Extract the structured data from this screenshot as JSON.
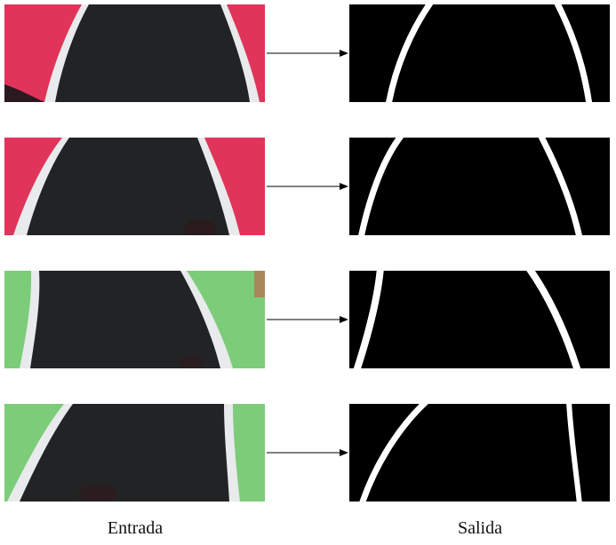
{
  "labels": {
    "input": "Entrada",
    "output": "Salida"
  },
  "colors": {
    "red_background": "#e0345a",
    "green_background": "#7dcc7a",
    "dark_object": "#222324",
    "white_border": "#e8eaec",
    "mask_background": "#000000",
    "mask_line": "#ffffff",
    "arrow": "#000000"
  },
  "rows": [
    {
      "background": "red",
      "icon": "input-photo-red"
    },
    {
      "background": "red",
      "icon": "input-photo-red"
    },
    {
      "background": "green",
      "icon": "input-photo-green"
    },
    {
      "background": "green",
      "icon": "input-photo-green"
    }
  ]
}
